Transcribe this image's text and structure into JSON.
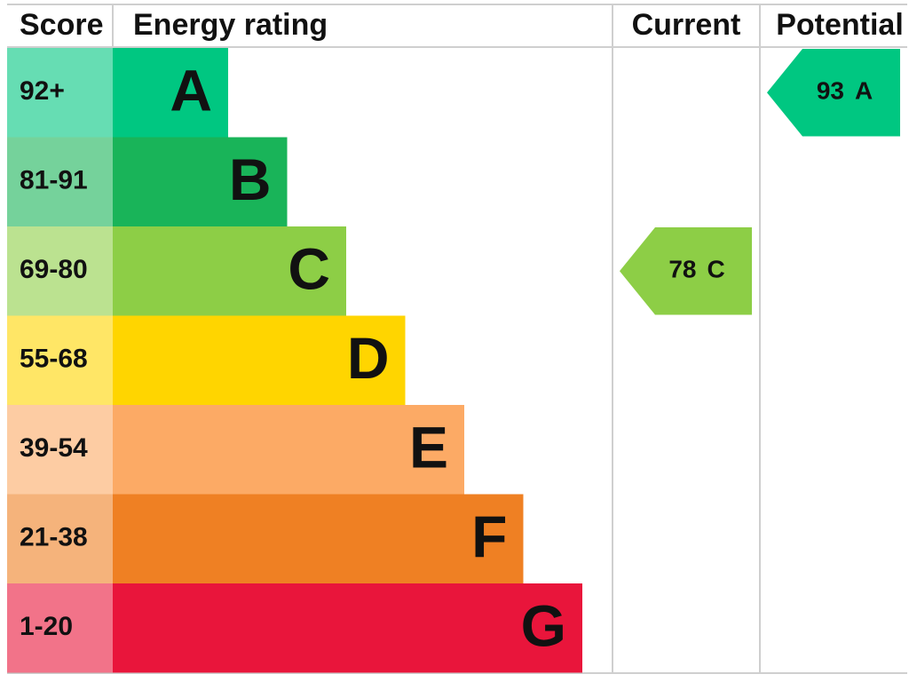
{
  "header": {
    "score": "Score",
    "rating": "Energy rating",
    "current": "Current",
    "potential": "Potential"
  },
  "bands": [
    {
      "score": "92+",
      "letter": "A",
      "color": "#00c781"
    },
    {
      "score": "81-91",
      "letter": "B",
      "color": "#19b459"
    },
    {
      "score": "69-80",
      "letter": "C",
      "color": "#8dce46"
    },
    {
      "score": "55-68",
      "letter": "D",
      "color": "#ffd500"
    },
    {
      "score": "39-54",
      "letter": "E",
      "color": "#fcaa65"
    },
    {
      "score": "21-38",
      "letter": "F",
      "color": "#ef8023"
    },
    {
      "score": "1-20",
      "letter": "G",
      "color": "#e9153b"
    }
  ],
  "current": {
    "score": 78,
    "letter": "C"
  },
  "potential": {
    "score": 93,
    "letter": "A"
  }
}
